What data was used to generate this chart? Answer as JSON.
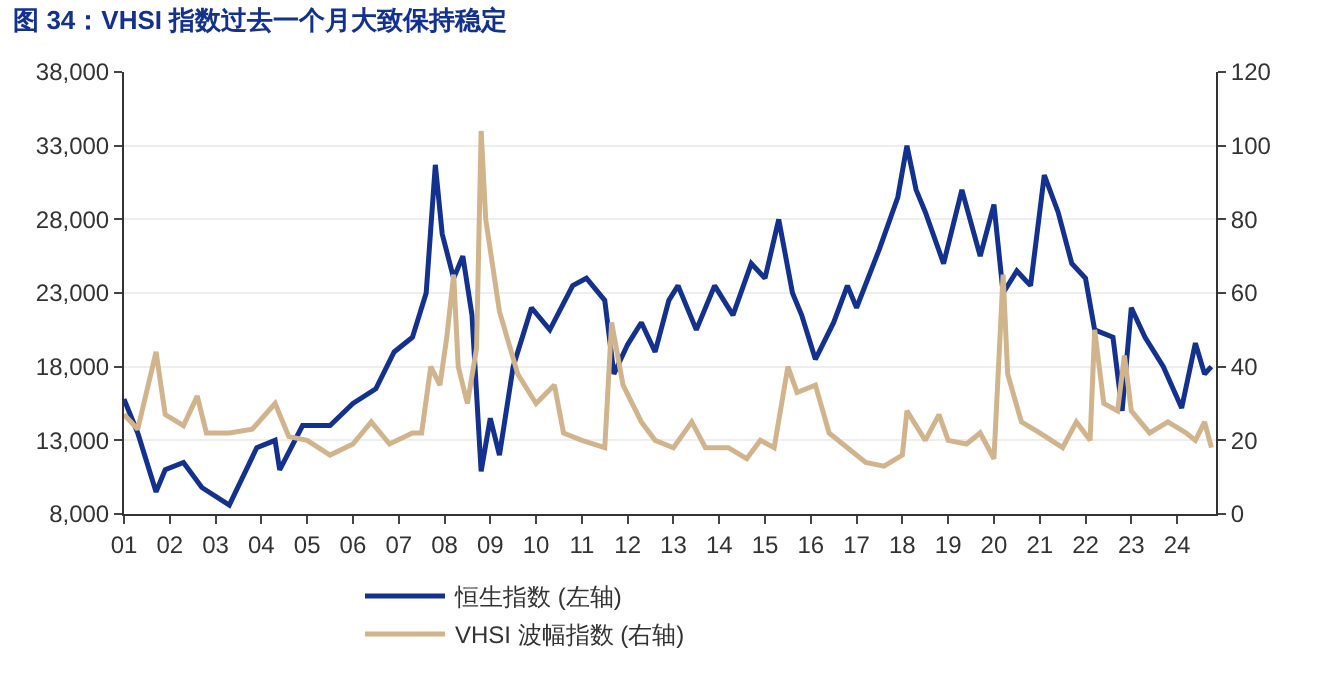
{
  "chart_data": {
    "type": "line",
    "title": "图 34：VHSI 指数过去一个月大致保持稳定",
    "xlim": [
      2001,
      2024.85
    ],
    "xticks": [
      {
        "value": 2001,
        "label": "01"
      },
      {
        "value": 2002,
        "label": "02"
      },
      {
        "value": 2003,
        "label": "03"
      },
      {
        "value": 2004,
        "label": "04"
      },
      {
        "value": 2005,
        "label": "05"
      },
      {
        "value": 2006,
        "label": "06"
      },
      {
        "value": 2007,
        "label": "07"
      },
      {
        "value": 2008,
        "label": "08"
      },
      {
        "value": 2009,
        "label": "09"
      },
      {
        "value": 2010,
        "label": "10"
      },
      {
        "value": 2011,
        "label": "11"
      },
      {
        "value": 2012,
        "label": "12"
      },
      {
        "value": 2013,
        "label": "13"
      },
      {
        "value": 2014,
        "label": "14"
      },
      {
        "value": 2015,
        "label": "15"
      },
      {
        "value": 2016,
        "label": "16"
      },
      {
        "value": 2017,
        "label": "17"
      },
      {
        "value": 2018,
        "label": "18"
      },
      {
        "value": 2019,
        "label": "19"
      },
      {
        "value": 2020,
        "label": "20"
      },
      {
        "value": 2021,
        "label": "21"
      },
      {
        "value": 2022,
        "label": "22"
      },
      {
        "value": 2023,
        "label": "23"
      },
      {
        "value": 2024,
        "label": "24"
      }
    ],
    "ylim": [
      8000,
      38000
    ],
    "yticks": [
      {
        "value": 8000,
        "label": "8,000"
      },
      {
        "value": 13000,
        "label": "13,000"
      },
      {
        "value": 18000,
        "label": "18,000"
      },
      {
        "value": 23000,
        "label": "23,000"
      },
      {
        "value": 28000,
        "label": "28,000"
      },
      {
        "value": 33000,
        "label": "33,000"
      },
      {
        "value": 38000,
        "label": "38,000"
      }
    ],
    "y2lim": [
      0,
      120
    ],
    "y2ticks": [
      0,
      20,
      40,
      60,
      80,
      100,
      120
    ],
    "grid": "y",
    "legend": "bottom",
    "series": [
      {
        "name": "恒生指数 (左轴)",
        "color": "#13318f",
        "x": [
          2001.0,
          2001.3,
          2001.7,
          2001.9,
          2002.3,
          2002.7,
          2003.3,
          2003.9,
          2004.3,
          2004.4,
          2004.9,
          2005.5,
          2006.0,
          2006.5,
          2006.9,
          2007.3,
          2007.6,
          2007.8,
          2007.95,
          2008.2,
          2008.4,
          2008.6,
          2008.8,
          2009.0,
          2009.2,
          2009.5,
          2009.9,
          2010.3,
          2010.8,
          2011.1,
          2011.5,
          2011.7,
          2012.0,
          2012.3,
          2012.6,
          2012.9,
          2013.1,
          2013.5,
          2013.9,
          2014.3,
          2014.7,
          2015.0,
          2015.3,
          2015.6,
          2015.8,
          2016.1,
          2016.5,
          2016.8,
          2017.0,
          2017.5,
          2017.9,
          2018.1,
          2018.3,
          2018.5,
          2018.9,
          2019.3,
          2019.7,
          2020.0,
          2020.2,
          2020.5,
          2020.8,
          2021.1,
          2021.4,
          2021.7,
          2022.0,
          2022.2,
          2022.6,
          2022.8,
          2023.0,
          2023.3,
          2023.7,
          2024.1,
          2024.4,
          2024.6,
          2024.75
        ],
        "values": [
          15800,
          13500,
          9500,
          11000,
          11500,
          9800,
          8600,
          12500,
          13000,
          11000,
          14000,
          14000,
          15500,
          16500,
          19000,
          20000,
          23000,
          31700,
          27000,
          24000,
          25500,
          21500,
          10900,
          14500,
          12000,
          18000,
          22000,
          20500,
          23500,
          24000,
          22500,
          17500,
          19500,
          21000,
          19000,
          22500,
          23500,
          20500,
          23500,
          21500,
          25000,
          24000,
          28000,
          23000,
          21500,
          18500,
          21000,
          23500,
          22000,
          26000,
          29500,
          33000,
          30000,
          28500,
          25000,
          30000,
          25500,
          29000,
          23000,
          24500,
          23500,
          31000,
          28500,
          25000,
          24000,
          20500,
          20000,
          15000,
          22000,
          20000,
          18000,
          15200,
          19600,
          17500,
          18000
        ]
      },
      {
        "name": "VHSI 波幅指数 (右轴)",
        "color": "#d1b48c",
        "axis": "y2",
        "x": [
          2001.0,
          2001.3,
          2001.7,
          2001.9,
          2002.3,
          2002.6,
          2002.8,
          2003.3,
          2003.8,
          2004.3,
          2004.6,
          2005.0,
          2005.5,
          2006.0,
          2006.4,
          2006.8,
          2007.3,
          2007.5,
          2007.7,
          2007.9,
          2008.05,
          2008.2,
          2008.3,
          2008.5,
          2008.7,
          2008.8,
          2008.9,
          2009.2,
          2009.6,
          2010.0,
          2010.4,
          2010.6,
          2011.0,
          2011.5,
          2011.65,
          2011.9,
          2012.3,
          2012.6,
          2013.0,
          2013.4,
          2013.7,
          2014.2,
          2014.6,
          2014.9,
          2015.2,
          2015.5,
          2015.7,
          2016.1,
          2016.4,
          2016.8,
          2017.2,
          2017.6,
          2018.0,
          2018.1,
          2018.5,
          2018.8,
          2019.0,
          2019.4,
          2019.7,
          2020.0,
          2020.2,
          2020.3,
          2020.6,
          2021.0,
          2021.5,
          2021.8,
          2022.1,
          2022.2,
          2022.4,
          2022.7,
          2022.85,
          2023.0,
          2023.4,
          2023.8,
          2024.2,
          2024.4,
          2024.6,
          2024.75
        ],
        "values": [
          27,
          23,
          44,
          27,
          24,
          32,
          22,
          22,
          23,
          30,
          21,
          20,
          16,
          19,
          25,
          19,
          22,
          22,
          40,
          35,
          48,
          65,
          40,
          30,
          45,
          104,
          80,
          55,
          38,
          30,
          35,
          22,
          20,
          18,
          52,
          35,
          25,
          20,
          18,
          25,
          18,
          18,
          15,
          20,
          18,
          40,
          33,
          35,
          22,
          18,
          14,
          13,
          16,
          28,
          20,
          27,
          20,
          19,
          22,
          15,
          65,
          38,
          25,
          22,
          18,
          25,
          20,
          50,
          30,
          28,
          43,
          28,
          22,
          25,
          22,
          20,
          25,
          18
        ]
      }
    ]
  }
}
